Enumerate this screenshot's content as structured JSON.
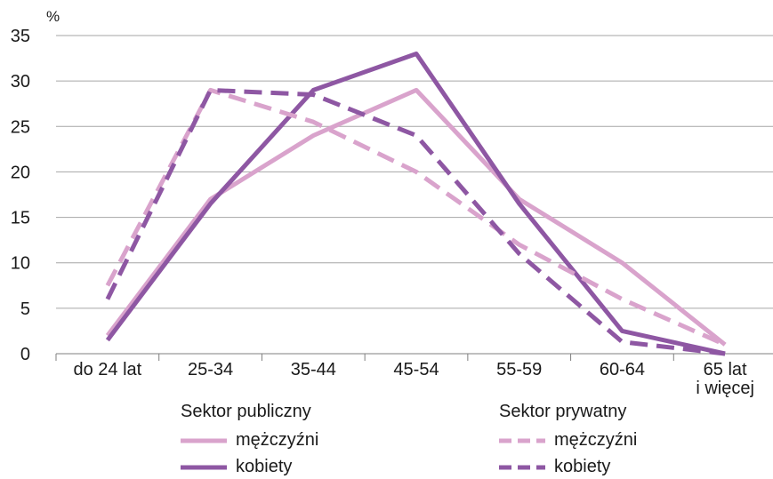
{
  "chart_data": {
    "type": "line",
    "ylabel": "%",
    "ylim": [
      0,
      35
    ],
    "yticks": [
      0,
      5,
      10,
      15,
      20,
      25,
      30,
      35
    ],
    "grid": true,
    "categories": [
      "do 24 lat",
      "25-34",
      "35-44",
      "45-54",
      "55-59",
      "60-64",
      "65 lat i więcej"
    ],
    "category_lines": [
      [
        "do 24 lat"
      ],
      [
        "25-34"
      ],
      [
        "35-44"
      ],
      [
        "45-54"
      ],
      [
        "55-59"
      ],
      [
        "60-64"
      ],
      [
        "65 lat",
        "i więcej"
      ]
    ],
    "series": [
      {
        "group": "Sektor publiczny",
        "name": "mężczyźni",
        "color": "#d9a3cc",
        "dashed": false,
        "values": [
          2.0,
          17.0,
          24.0,
          29.0,
          17.0,
          10.0,
          1.0
        ]
      },
      {
        "group": "Sektor publiczny",
        "name": "kobiety",
        "color": "#8e57a3",
        "dashed": false,
        "values": [
          1.5,
          16.5,
          29.0,
          33.0,
          16.5,
          2.5,
          0.0
        ]
      },
      {
        "group": "Sektor prywatny",
        "name": "mężczyźni",
        "color": "#d9a3cc",
        "dashed": true,
        "values": [
          7.5,
          29.0,
          25.5,
          20.0,
          12.0,
          6.0,
          1.0
        ]
      },
      {
        "group": "Sektor prywatny",
        "name": "kobiety",
        "color": "#8e57a3",
        "dashed": true,
        "values": [
          6.0,
          29.0,
          28.5,
          24.0,
          11.0,
          1.3,
          0.0
        ]
      }
    ],
    "legend_groups": [
      {
        "title": "Sektor publiczny",
        "items": [
          "mężczyźni",
          "kobiety"
        ]
      },
      {
        "title": "Sektor prywatny",
        "items": [
          "mężczyźni",
          "kobiety"
        ]
      }
    ]
  }
}
